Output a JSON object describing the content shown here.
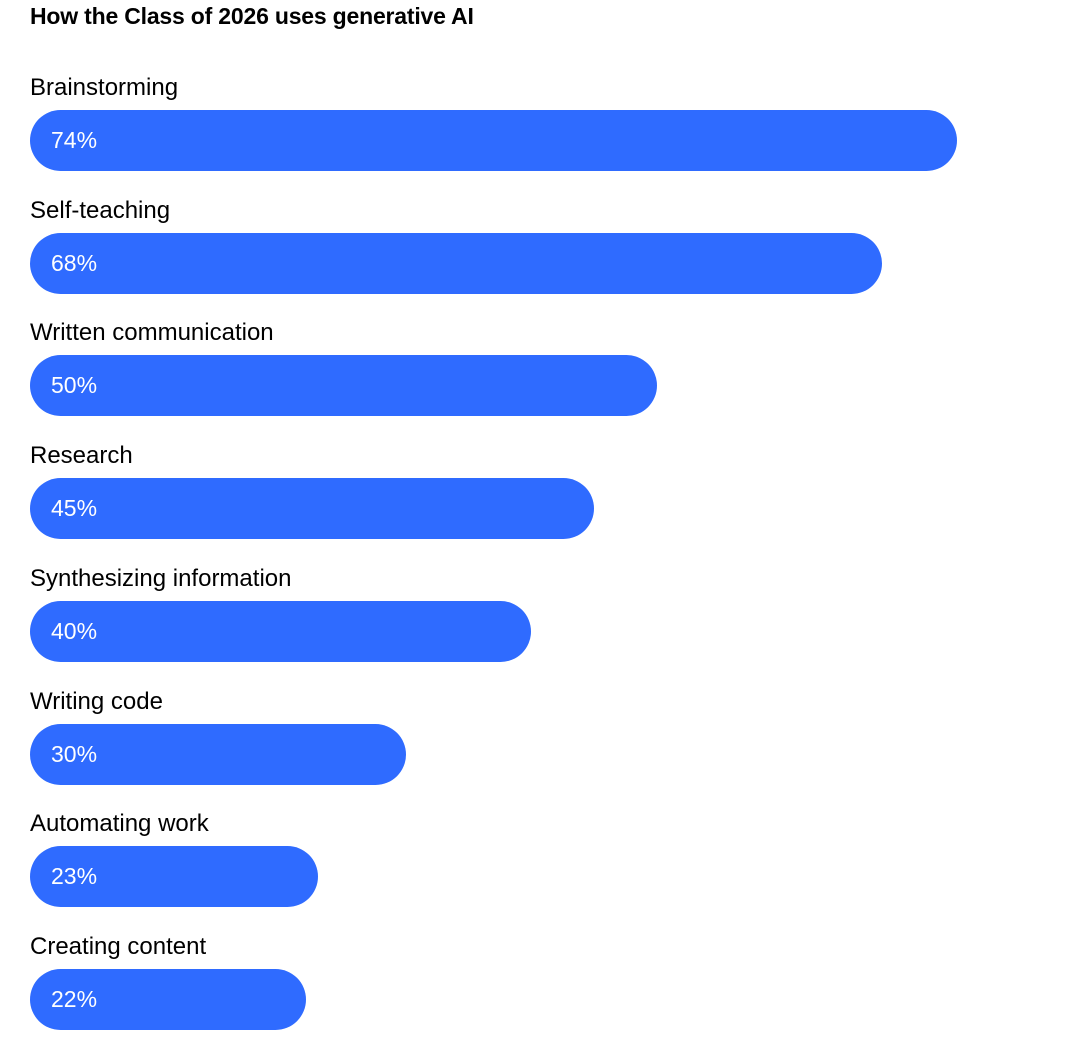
{
  "chart_data": {
    "type": "bar",
    "orientation": "horizontal",
    "title": "How the Class of 2026 uses generative AI",
    "categories": [
      "Brainstorming",
      "Self-teaching",
      "Written communication",
      "Research",
      "Synthesizing information",
      "Writing code",
      "Automating work",
      "Creating content"
    ],
    "values": [
      74,
      68,
      50,
      45,
      40,
      30,
      23,
      22
    ],
    "value_labels": [
      "74%",
      "68%",
      "50%",
      "45%",
      "40%",
      "30%",
      "23%",
      "22%"
    ],
    "unit": "%",
    "xlim": [
      0,
      100
    ],
    "grid": false,
    "legend": "none",
    "bar_color": "#2f6bff",
    "label_color": "#ffffff"
  }
}
